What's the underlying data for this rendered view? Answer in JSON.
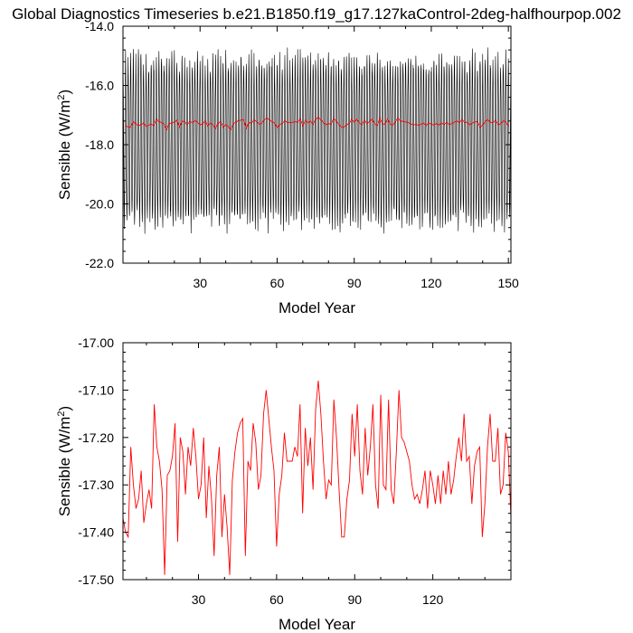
{
  "title": "Global Diagnostics Timeseries b.e21.B1850.f19_g17.127kaControl-2deg-halfhourpop.002",
  "chart_data": [
    {
      "type": "line",
      "xlabel": "Model Year",
      "ylabel_main": "Sensible (W/m",
      "ylabel_sup": "2",
      "ylabel_end": ")",
      "xlim": [
        0,
        151
      ],
      "ylim": [
        -22.0,
        -14.0
      ],
      "xticks": [
        30,
        60,
        90,
        120,
        150
      ],
      "xtick_labels": [
        "30",
        "60",
        "90",
        "120",
        "150"
      ],
      "yticks": [
        -22.0,
        -20.0,
        -18.0,
        -16.0,
        -14.0
      ],
      "ytick_labels": [
        "-22.0",
        "-20.0",
        "-18.0",
        "-16.0",
        "-14.0"
      ],
      "grid": false,
      "series": [
        {
          "color": "#000000",
          "kind": "monthly",
          "seasonal_max": -15.1,
          "seasonal_min": -20.6,
          "overall_max": -14.4,
          "overall_min": -21.3
        },
        {
          "color": "#ff0000",
          "kind": "annual_mean_ref"
        }
      ]
    },
    {
      "type": "line",
      "xlabel": "Model Year",
      "ylabel_main": "Sensible (W/m",
      "ylabel_sup": "2",
      "ylabel_end": ")",
      "xlim": [
        1,
        150
      ],
      "ylim": [
        -17.5,
        -17.0
      ],
      "xticks": [
        30,
        60,
        90,
        120
      ],
      "xtick_labels": [
        "30",
        "60",
        "90",
        "120"
      ],
      "yticks": [
        -17.5,
        -17.4,
        -17.3,
        -17.2,
        -17.1,
        -17.0
      ],
      "ytick_labels": [
        "-17.50",
        "-17.40",
        "-17.30",
        "-17.20",
        "-17.10",
        "-17.00"
      ],
      "grid": false,
      "series": [
        {
          "color": "#ff0000",
          "x_start": 1,
          "values": [
            -17.37,
            -17.4,
            -17.41,
            -17.22,
            -17.3,
            -17.35,
            -17.33,
            -17.27,
            -17.38,
            -17.34,
            -17.31,
            -17.35,
            -17.13,
            -17.22,
            -17.25,
            -17.31,
            -17.49,
            -17.28,
            -17.27,
            -17.24,
            -17.17,
            -17.42,
            -17.2,
            -17.23,
            -17.32,
            -17.22,
            -17.26,
            -17.18,
            -17.24,
            -17.33,
            -17.3,
            -17.2,
            -17.37,
            -17.26,
            -17.33,
            -17.45,
            -17.28,
            -17.22,
            -17.41,
            -17.32,
            -17.39,
            -17.49,
            -17.29,
            -17.23,
            -17.19,
            -17.17,
            -17.16,
            -17.45,
            -17.25,
            -17.27,
            -17.17,
            -17.21,
            -17.31,
            -17.28,
            -17.15,
            -17.1,
            -17.16,
            -17.22,
            -17.27,
            -17.43,
            -17.32,
            -17.28,
            -17.19,
            -17.25,
            -17.25,
            -17.25,
            -17.22,
            -17.24,
            -17.13,
            -17.36,
            -17.18,
            -17.26,
            -17.2,
            -17.31,
            -17.14,
            -17.08,
            -17.15,
            -17.25,
            -17.33,
            -17.29,
            -17.3,
            -17.12,
            -17.2,
            -17.31,
            -17.41,
            -17.41,
            -17.33,
            -17.29,
            -17.15,
            -17.24,
            -17.13,
            -17.27,
            -17.32,
            -17.18,
            -17.28,
            -17.22,
            -17.13,
            -17.3,
            -17.35,
            -17.11,
            -17.3,
            -17.31,
            -17.12,
            -17.31,
            -17.34,
            -17.23,
            -17.1,
            -17.2,
            -17.21,
            -17.23,
            -17.25,
            -17.3,
            -17.33,
            -17.32,
            -17.34,
            -17.31,
            -17.27,
            -17.35,
            -17.27,
            -17.3,
            -17.34,
            -17.28,
            -17.34,
            -17.27,
            -17.32,
            -17.25,
            -17.32,
            -17.29,
            -17.24,
            -17.2,
            -17.25,
            -17.15,
            -17.25,
            -17.24,
            -17.34,
            -17.26,
            -17.23,
            -17.22,
            -17.41,
            -17.34,
            -17.22,
            -17.15,
            -17.25,
            -17.25,
            -17.18,
            -17.32,
            -17.3,
            -17.19,
            -17.23,
            -17.37
          ]
        }
      ]
    }
  ]
}
